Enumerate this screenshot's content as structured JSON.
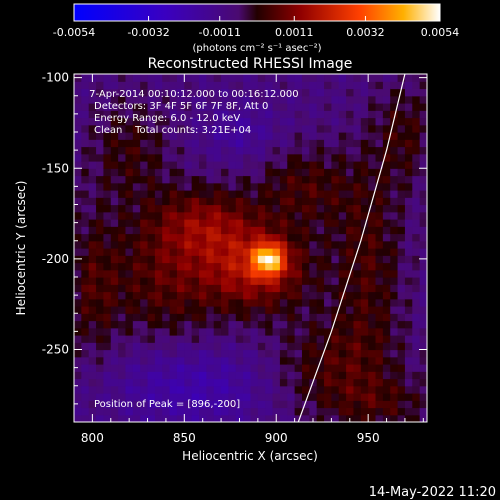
{
  "chart_data": {
    "type": "heatmap",
    "title": "Reconstructed RHESSI Image",
    "xlabel": "Heliocentric X (arcsec)",
    "ylabel": "Heliocentric Y (arcsec)",
    "xlim": [
      790,
      982
    ],
    "ylim": [
      -290,
      -98
    ],
    "x_ticks": [
      800,
      850,
      900,
      950
    ],
    "y_ticks": [
      -100,
      -150,
      -200,
      -250
    ],
    "colorbar": {
      "ticks": [
        "-0.0054",
        "-0.0032",
        "-0.0011",
        "0.0011",
        "0.0032",
        "0.0054"
      ],
      "range": [
        -0.0054,
        0.0054
      ],
      "unit_label": "(photons cm⁻² s⁻¹ asec⁻²)"
    },
    "info_lines": [
      " 7-Apr-2014 00:10:12.000 to 00:16:12.000",
      "Detectors: 3F 4F 5F 6F 7F 8F, Att 0",
      "Energy Range: 6.0 - 12.0 keV",
      "Clean    Total counts: 3.21E+04"
    ],
    "peak_label": "Position of Peak = [896,-200]",
    "peak": {
      "x": 896,
      "y": -200,
      "value": 0.0054
    },
    "limb_curve": [
      [
        912,
        -290
      ],
      [
        930,
        -240
      ],
      [
        946,
        -190
      ],
      [
        960,
        -140
      ],
      [
        970,
        -98
      ]
    ],
    "blobs": [
      {
        "x": 896,
        "y": -200,
        "sx": 6,
        "sy": 6,
        "a": 0.004
      },
      {
        "x": 890,
        "y": -205,
        "sx": 20,
        "sy": 16,
        "a": 0.0024
      },
      {
        "x": 862,
        "y": -180,
        "sx": 20,
        "sy": 14,
        "a": 0.0016
      },
      {
        "x": 840,
        "y": -210,
        "sx": 24,
        "sy": 26,
        "a": 0.0014
      },
      {
        "x": 915,
        "y": -160,
        "sx": 18,
        "sy": 16,
        "a": 0.0012
      },
      {
        "x": 950,
        "y": -200,
        "sx": 14,
        "sy": 40,
        "a": 0.0012
      },
      {
        "x": 820,
        "y": -140,
        "sx": 16,
        "sy": 20,
        "a": 0.001
      },
      {
        "x": 930,
        "y": -260,
        "sx": 24,
        "sy": 20,
        "a": 0.0012
      },
      {
        "x": 970,
        "y": -130,
        "sx": 12,
        "sy": 20,
        "a": 0.001
      },
      {
        "x": 800,
        "y": -215,
        "sx": 10,
        "sy": 30,
        "a": 0.001
      },
      {
        "x": 880,
        "y": -130,
        "sx": 14,
        "sy": 10,
        "a": -0.0008
      },
      {
        "x": 855,
        "y": -270,
        "sx": 30,
        "sy": 16,
        "a": -0.0012
      },
      {
        "x": 960,
        "y": -280,
        "sx": 20,
        "sy": 10,
        "a": 0.0008
      }
    ]
  },
  "footer": {
    "timestamp": "14-May-2022 11:20"
  }
}
